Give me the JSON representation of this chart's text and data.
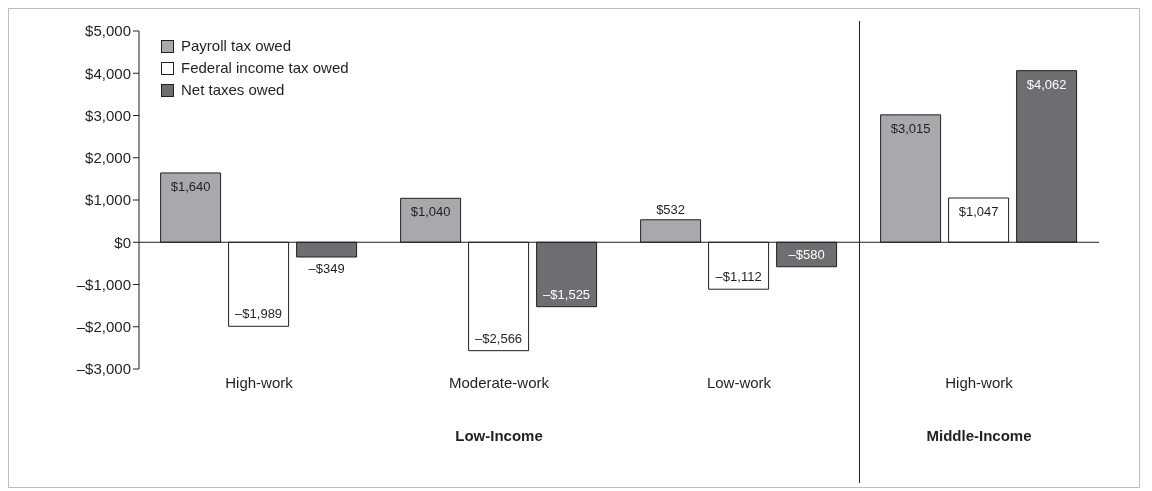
{
  "chart_data": {
    "type": "bar",
    "categories": [
      "High-work",
      "Moderate-work",
      "Low-work",
      "High-work"
    ],
    "series": [
      {
        "name": "Payroll tax owed",
        "color": "#a7a9ac",
        "values": [
          1640,
          1040,
          532,
          3015
        ],
        "value_labels": [
          "$1,640",
          "$1,040",
          "$532",
          "$3,015"
        ]
      },
      {
        "name": "Federal income tax owed",
        "color": "#ffffff",
        "values": [
          -1989,
          -2566,
          -1112,
          1047
        ],
        "value_labels": [
          "–$1,989",
          "–$2,566",
          "–$1,112",
          "$1,047"
        ]
      },
      {
        "name": "Net taxes owed",
        "color": "#6d6e71",
        "values": [
          -349,
          -1525,
          -580,
          4062
        ],
        "value_labels": [
          "–$349",
          "–$1,525",
          "–$580",
          "$4,062"
        ]
      }
    ],
    "ylim": [
      -3000,
      5000
    ],
    "yticks": [
      {
        "value": -3000,
        "label": "–$3,000"
      },
      {
        "value": -2000,
        "label": "–$2,000"
      },
      {
        "value": -1000,
        "label": "–$1,000"
      },
      {
        "value": 0,
        "label": "$0"
      },
      {
        "value": 1000,
        "label": "$1,000"
      },
      {
        "value": 2000,
        "label": "$2,000"
      },
      {
        "value": 3000,
        "label": "$3,000"
      },
      {
        "value": 4000,
        "label": "$4,000"
      },
      {
        "value": 5000,
        "label": "$5,000"
      }
    ],
    "annotations": [
      "Low-Income",
      "Middle-Income"
    ],
    "legend": "top left"
  }
}
